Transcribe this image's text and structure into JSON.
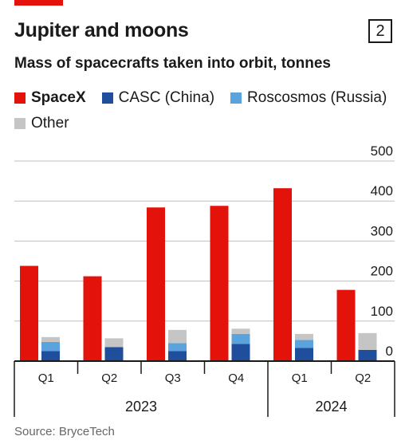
{
  "header": {
    "title": "Jupiter and moons",
    "badge": "2"
  },
  "colors": {
    "accent": "#e3120b",
    "axis": "#1a1a1a",
    "grid": "#bfbfbf"
  },
  "legend": {
    "items": [
      {
        "label": "SpaceX",
        "color": "#e3120b",
        "bold": true
      },
      {
        "label": "CASC (China)",
        "color": "#1f4e9c"
      },
      {
        "label": "Roscosmos (Russia)",
        "color": "#5ba3dc"
      },
      {
        "label": "Other",
        "color": "#c5c5c5"
      }
    ]
  },
  "chart_data": {
    "type": "bar",
    "subtitle": "Mass of spacecrafts taken into orbit, tonnes",
    "categories": [
      "Q1",
      "Q2",
      "Q3",
      "Q4",
      "Q1",
      "Q2"
    ],
    "year_labels": [
      {
        "label": "2023",
        "quarters": [
          "Q1",
          "Q2",
          "Q3",
          "Q4"
        ]
      },
      {
        "label": "2024",
        "quarters": [
          "Q1",
          "Q2"
        ]
      }
    ],
    "series": [
      {
        "name": "SpaceX",
        "color": "#e3120b",
        "values": [
          238,
          212,
          384,
          388,
          432,
          178
        ]
      },
      {
        "name": "CASC (China)",
        "color": "#1f4e9c",
        "values": [
          25,
          35,
          25,
          43,
          33,
          28
        ]
      },
      {
        "name": "Roscosmos (Russia)",
        "color": "#5ba3dc",
        "values": [
          23,
          0,
          20,
          25,
          20,
          0
        ]
      },
      {
        "name": "Other",
        "color": "#c5c5c5",
        "values": [
          12,
          22,
          33,
          13,
          15,
          42
        ]
      }
    ],
    "stacked_series": [
      "CASC (China)",
      "Roscosmos (Russia)",
      "Other"
    ],
    "ylim": [
      0,
      500
    ],
    "yticks": [
      0,
      100,
      200,
      300,
      400,
      500
    ],
    "grid": true,
    "y_axis_position": "right",
    "legend_position": "top-left",
    "xlabel": "",
    "ylabel": ""
  },
  "source": "Source: BryceTech"
}
